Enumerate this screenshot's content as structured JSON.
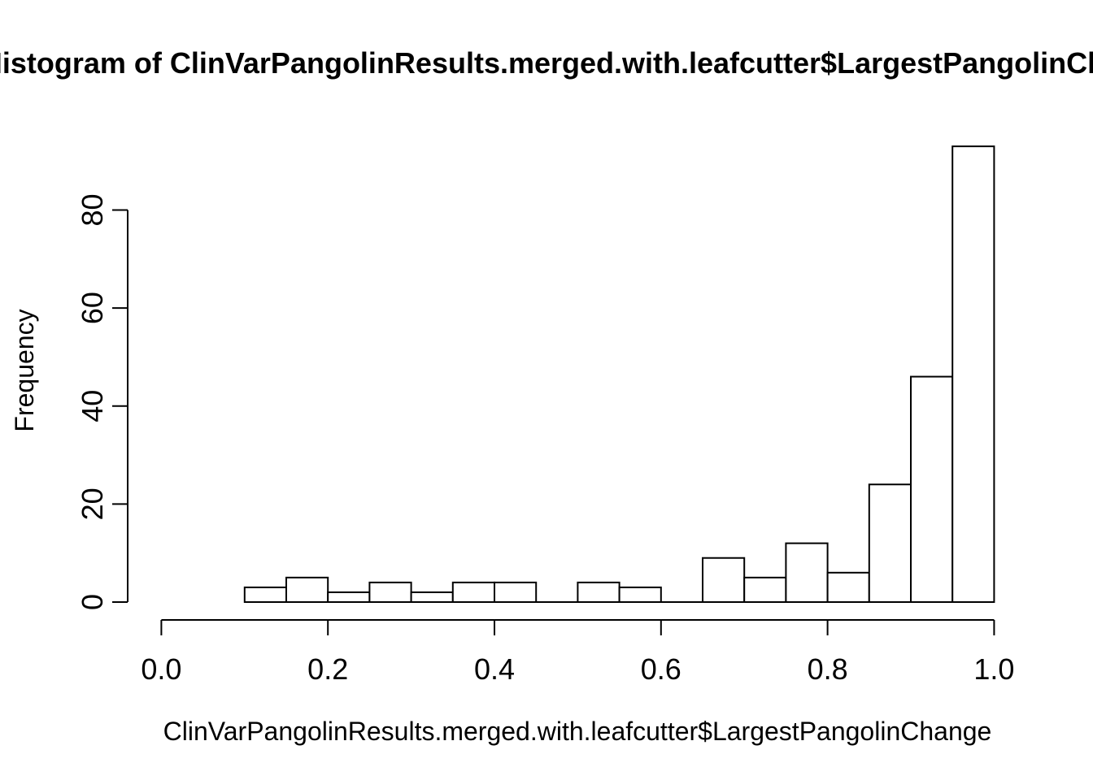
{
  "chart_data": {
    "type": "bar",
    "subtype": "histogram",
    "title": "Histogram of ClinVarPangolinResults.merged.with.leafcutter$LargestPangolinChange",
    "title_clipped_visible": "togram of ClinVarPangolinResults.merged.with.leafcutter$LargestPangolin",
    "xlabel": "ClinVarPangolinResults.merged.with.leafcutter$LargestPangolinChange",
    "ylabel": "Frequency",
    "bin_start": 0.1,
    "bin_width": 0.05,
    "bin_edges": [
      0.1,
      0.15,
      0.2,
      0.25,
      0.3,
      0.35,
      0.4,
      0.45,
      0.5,
      0.55,
      0.6,
      0.65,
      0.7,
      0.75,
      0.8,
      0.85,
      0.9,
      0.95,
      1.0
    ],
    "counts": [
      3,
      5,
      2,
      4,
      2,
      4,
      4,
      0,
      4,
      3,
      0,
      9,
      5,
      12,
      6,
      24,
      46,
      93
    ],
    "x_ticks": [
      0.0,
      0.2,
      0.4,
      0.6,
      0.8,
      1.0
    ],
    "x_tick_labels": [
      "0.0",
      "0.2",
      "0.4",
      "0.6",
      "0.8",
      "1.0"
    ],
    "y_ticks": [
      0,
      20,
      40,
      60,
      80
    ],
    "y_tick_labels": [
      "0",
      "20",
      "40",
      "60",
      "80"
    ],
    "xlim": [
      0.0,
      1.0
    ],
    "ylim": [
      0,
      93
    ],
    "grid": false,
    "legend": null,
    "bar_fill": "#ffffff",
    "bar_stroke": "#000000",
    "axis_color": "#000000",
    "text_color": "#000000",
    "background": "#ffffff"
  }
}
